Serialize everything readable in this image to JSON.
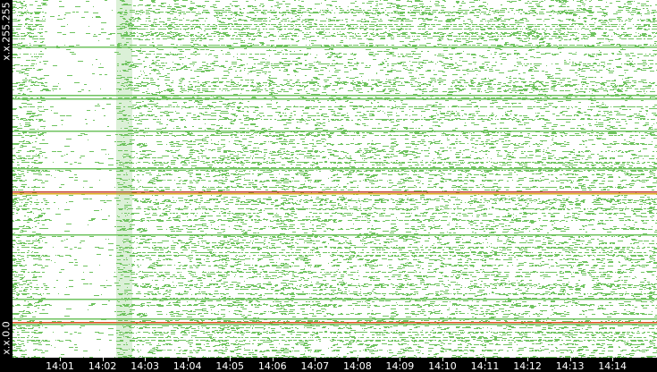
{
  "chart_data": {
    "type": "heatmap",
    "title": "",
    "y_labels": {
      "top": "x.x.255.255",
      "bottom": "x.x.0.0"
    },
    "x_ticks": [
      "14:01",
      "14:02",
      "14:03",
      "14:04",
      "14:05",
      "14:06",
      "14:07",
      "14:08",
      "14:09",
      "14:10",
      "14:11",
      "14:12",
      "14:13",
      "14:14"
    ],
    "x_range": [
      "14:00:10",
      "14:14:50"
    ],
    "colors": {
      "background": "#ffffff",
      "low": "#6fc35f",
      "mid": "#e0b020",
      "high": "#c0392b",
      "frame": "#000000"
    },
    "solid_lines": [
      {
        "y_frac": 0.13,
        "color": "#6fc35f"
      },
      {
        "y_frac": 0.265,
        "color": "#6fc35f"
      },
      {
        "y_frac": 0.275,
        "color": "#6fc35f"
      },
      {
        "y_frac": 0.365,
        "color": "#6fc35f"
      },
      {
        "y_frac": 0.47,
        "color": "#6fc35f"
      },
      {
        "y_frac": 0.535,
        "color": "#c0392b"
      },
      {
        "y_frac": 0.54,
        "color": "#e0b020"
      },
      {
        "y_frac": 0.655,
        "color": "#6fc35f"
      },
      {
        "y_frac": 0.835,
        "color": "#6fc35f"
      },
      {
        "y_frac": 0.89,
        "color": "#6fc35f"
      },
      {
        "y_frac": 0.9,
        "color": "#e05020"
      },
      {
        "y_frac": 0.905,
        "color": "#6fc35f"
      }
    ],
    "gap_region": {
      "from_tick": 0,
      "to_tick": 1.9
    }
  }
}
